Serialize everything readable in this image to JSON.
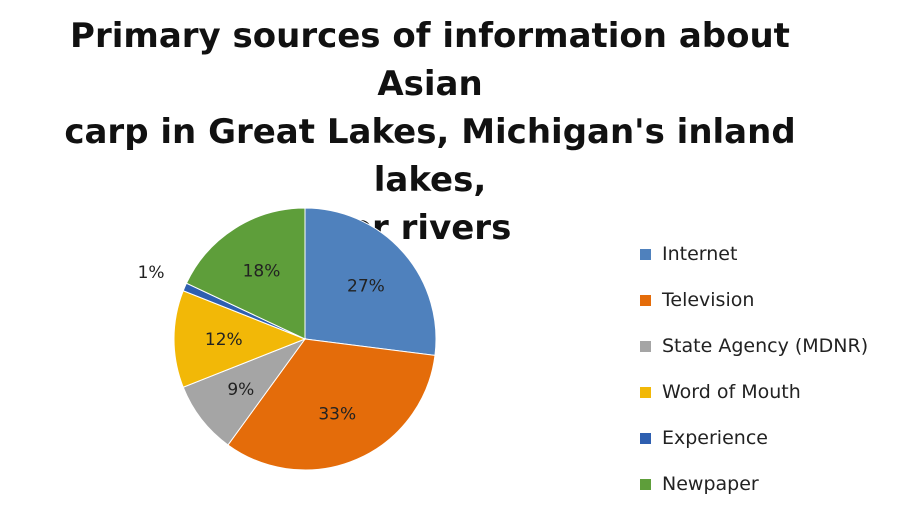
{
  "chart_data": {
    "type": "pie",
    "title_lines": [
      "Primary sources of information about Asian",
      "carp in Great Lakes, Michigan's inland lakes,",
      "or rivers"
    ],
    "categories": [
      "Internet",
      "Television",
      "State Agency (MDNR)",
      "Word of Mouth",
      "Experience",
      "Newpaper"
    ],
    "values": [
      27,
      33,
      9,
      12,
      1,
      18
    ],
    "labels": [
      "27%",
      "33%",
      "9%",
      "12%",
      "1%",
      "18%"
    ],
    "colors": [
      "#4F81BD",
      "#E46C0A",
      "#A5A5A5",
      "#F2B807",
      "#2E5FB0",
      "#5E9E3A"
    ],
    "legend_position": "right",
    "start_angle_deg": 0,
    "direction": "clockwise"
  }
}
